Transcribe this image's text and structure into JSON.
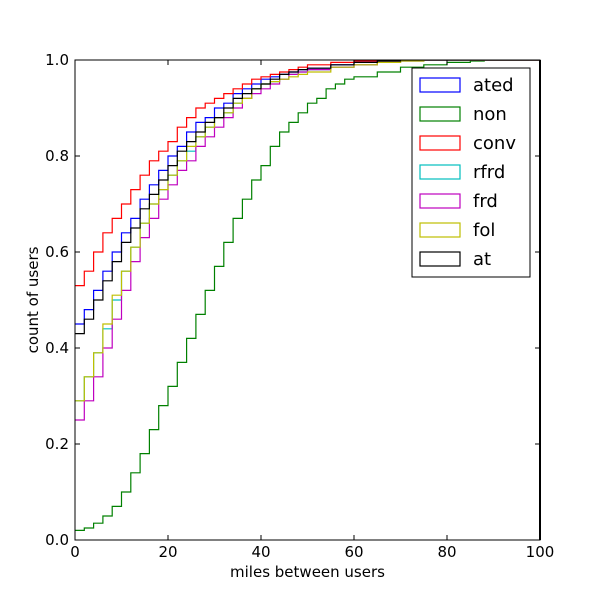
{
  "chart_data": {
    "type": "line",
    "step": true,
    "title": "",
    "xlabel": "miles between users",
    "ylabel": "count of users",
    "xlim": [
      0,
      100
    ],
    "ylim": [
      0,
      1
    ],
    "x_ticks": [
      0,
      20,
      40,
      60,
      80,
      100
    ],
    "y_ticks": [
      0.0,
      0.2,
      0.4,
      0.6,
      0.8,
      1.0
    ],
    "x_tick_labels": [
      "0",
      "20",
      "40",
      "60",
      "80",
      "100"
    ],
    "y_tick_labels": [
      "0.0",
      "0.2",
      "0.4",
      "0.6",
      "0.8",
      "1.0"
    ],
    "grid": false,
    "legend_position": "top-right",
    "series": [
      {
        "name": "ated",
        "color": "#0000ff",
        "x": [
          0,
          2,
          4,
          6,
          8,
          10,
          12,
          14,
          16,
          18,
          20,
          22,
          24,
          26,
          28,
          30,
          32,
          34,
          36,
          38,
          40,
          42,
          44,
          46,
          48,
          50,
          55,
          60,
          65,
          70,
          75,
          80
        ],
        "y": [
          0.45,
          0.48,
          0.52,
          0.56,
          0.6,
          0.64,
          0.67,
          0.71,
          0.74,
          0.77,
          0.8,
          0.82,
          0.85,
          0.87,
          0.88,
          0.9,
          0.91,
          0.93,
          0.94,
          0.95,
          0.96,
          0.965,
          0.97,
          0.975,
          0.98,
          0.983,
          0.99,
          0.995,
          0.998,
          1.0,
          1.0,
          1.0
        ]
      },
      {
        "name": "non",
        "color": "#008000",
        "x": [
          0,
          2,
          4,
          6,
          8,
          10,
          12,
          14,
          16,
          18,
          20,
          22,
          24,
          26,
          28,
          30,
          32,
          34,
          36,
          38,
          40,
          42,
          44,
          46,
          48,
          50,
          52,
          54,
          56,
          58,
          60,
          65,
          70,
          75,
          80,
          85,
          88
        ],
        "y": [
          0.02,
          0.025,
          0.035,
          0.05,
          0.07,
          0.1,
          0.14,
          0.18,
          0.23,
          0.28,
          0.32,
          0.37,
          0.42,
          0.47,
          0.52,
          0.57,
          0.62,
          0.67,
          0.71,
          0.75,
          0.78,
          0.82,
          0.85,
          0.87,
          0.89,
          0.91,
          0.92,
          0.94,
          0.95,
          0.96,
          0.965,
          0.975,
          0.985,
          0.99,
          0.995,
          0.998,
          1.0
        ]
      },
      {
        "name": "conv",
        "color": "#ff0000",
        "x": [
          0,
          2,
          4,
          6,
          8,
          10,
          12,
          14,
          16,
          18,
          20,
          22,
          24,
          26,
          28,
          30,
          32,
          34,
          36,
          38,
          40,
          42,
          44,
          46,
          48,
          50,
          55,
          60,
          65,
          70,
          75
        ],
        "y": [
          0.53,
          0.56,
          0.6,
          0.64,
          0.67,
          0.7,
          0.73,
          0.76,
          0.79,
          0.81,
          0.83,
          0.86,
          0.88,
          0.9,
          0.91,
          0.92,
          0.93,
          0.94,
          0.95,
          0.96,
          0.965,
          0.97,
          0.975,
          0.98,
          0.985,
          0.99,
          0.995,
          0.998,
          1.0,
          1.0,
          1.0
        ]
      },
      {
        "name": "rfrd",
        "color": "#00bfbf",
        "x": [
          0,
          2,
          4,
          6,
          8,
          10,
          12,
          14,
          16,
          18,
          20,
          22,
          24,
          26,
          28,
          30,
          32,
          34,
          36,
          38,
          40,
          42,
          44,
          46,
          48,
          50,
          55,
          60,
          65,
          70,
          75,
          80
        ],
        "y": [
          0.29,
          0.34,
          0.39,
          0.44,
          0.5,
          0.56,
          0.61,
          0.66,
          0.7,
          0.73,
          0.76,
          0.79,
          0.81,
          0.84,
          0.86,
          0.88,
          0.89,
          0.91,
          0.92,
          0.94,
          0.95,
          0.955,
          0.96,
          0.97,
          0.975,
          0.98,
          0.985,
          0.99,
          0.995,
          0.998,
          1.0,
          1.0
        ]
      },
      {
        "name": "frd",
        "color": "#bf00bf",
        "x": [
          0,
          2,
          4,
          6,
          8,
          10,
          12,
          14,
          16,
          18,
          20,
          22,
          24,
          26,
          28,
          30,
          32,
          34,
          36,
          38,
          40,
          42,
          44,
          46,
          48,
          50,
          55,
          60,
          65,
          70,
          75,
          80
        ],
        "y": [
          0.25,
          0.29,
          0.34,
          0.4,
          0.46,
          0.52,
          0.58,
          0.63,
          0.67,
          0.71,
          0.74,
          0.77,
          0.79,
          0.82,
          0.84,
          0.86,
          0.88,
          0.9,
          0.92,
          0.93,
          0.94,
          0.95,
          0.96,
          0.97,
          0.975,
          0.98,
          0.985,
          0.99,
          0.995,
          0.998,
          1.0,
          1.0
        ]
      },
      {
        "name": "fol",
        "color": "#bfbf00",
        "x": [
          0,
          2,
          4,
          6,
          8,
          10,
          12,
          14,
          16,
          18,
          20,
          22,
          24,
          26,
          28,
          30,
          32,
          34,
          36,
          38,
          40,
          42,
          44,
          46,
          48,
          50,
          55,
          60,
          65,
          70,
          75,
          80
        ],
        "y": [
          0.29,
          0.34,
          0.39,
          0.45,
          0.51,
          0.56,
          0.61,
          0.66,
          0.7,
          0.73,
          0.76,
          0.79,
          0.82,
          0.84,
          0.86,
          0.88,
          0.89,
          0.91,
          0.92,
          0.94,
          0.95,
          0.955,
          0.96,
          0.965,
          0.97,
          0.975,
          0.985,
          0.99,
          0.995,
          0.998,
          1.0,
          1.0
        ]
      },
      {
        "name": "at",
        "color": "#000000",
        "x": [
          0,
          2,
          4,
          6,
          8,
          10,
          12,
          14,
          16,
          18,
          20,
          22,
          24,
          26,
          28,
          30,
          32,
          34,
          36,
          38,
          40,
          42,
          44,
          46,
          48,
          50,
          55,
          60,
          65,
          70,
          75,
          80
        ],
        "y": [
          0.43,
          0.46,
          0.5,
          0.54,
          0.58,
          0.62,
          0.65,
          0.69,
          0.72,
          0.75,
          0.78,
          0.81,
          0.83,
          0.85,
          0.87,
          0.88,
          0.9,
          0.92,
          0.93,
          0.94,
          0.95,
          0.96,
          0.97,
          0.975,
          0.98,
          0.983,
          0.99,
          0.995,
          0.998,
          1.0,
          1.0,
          1.0
        ]
      }
    ]
  }
}
